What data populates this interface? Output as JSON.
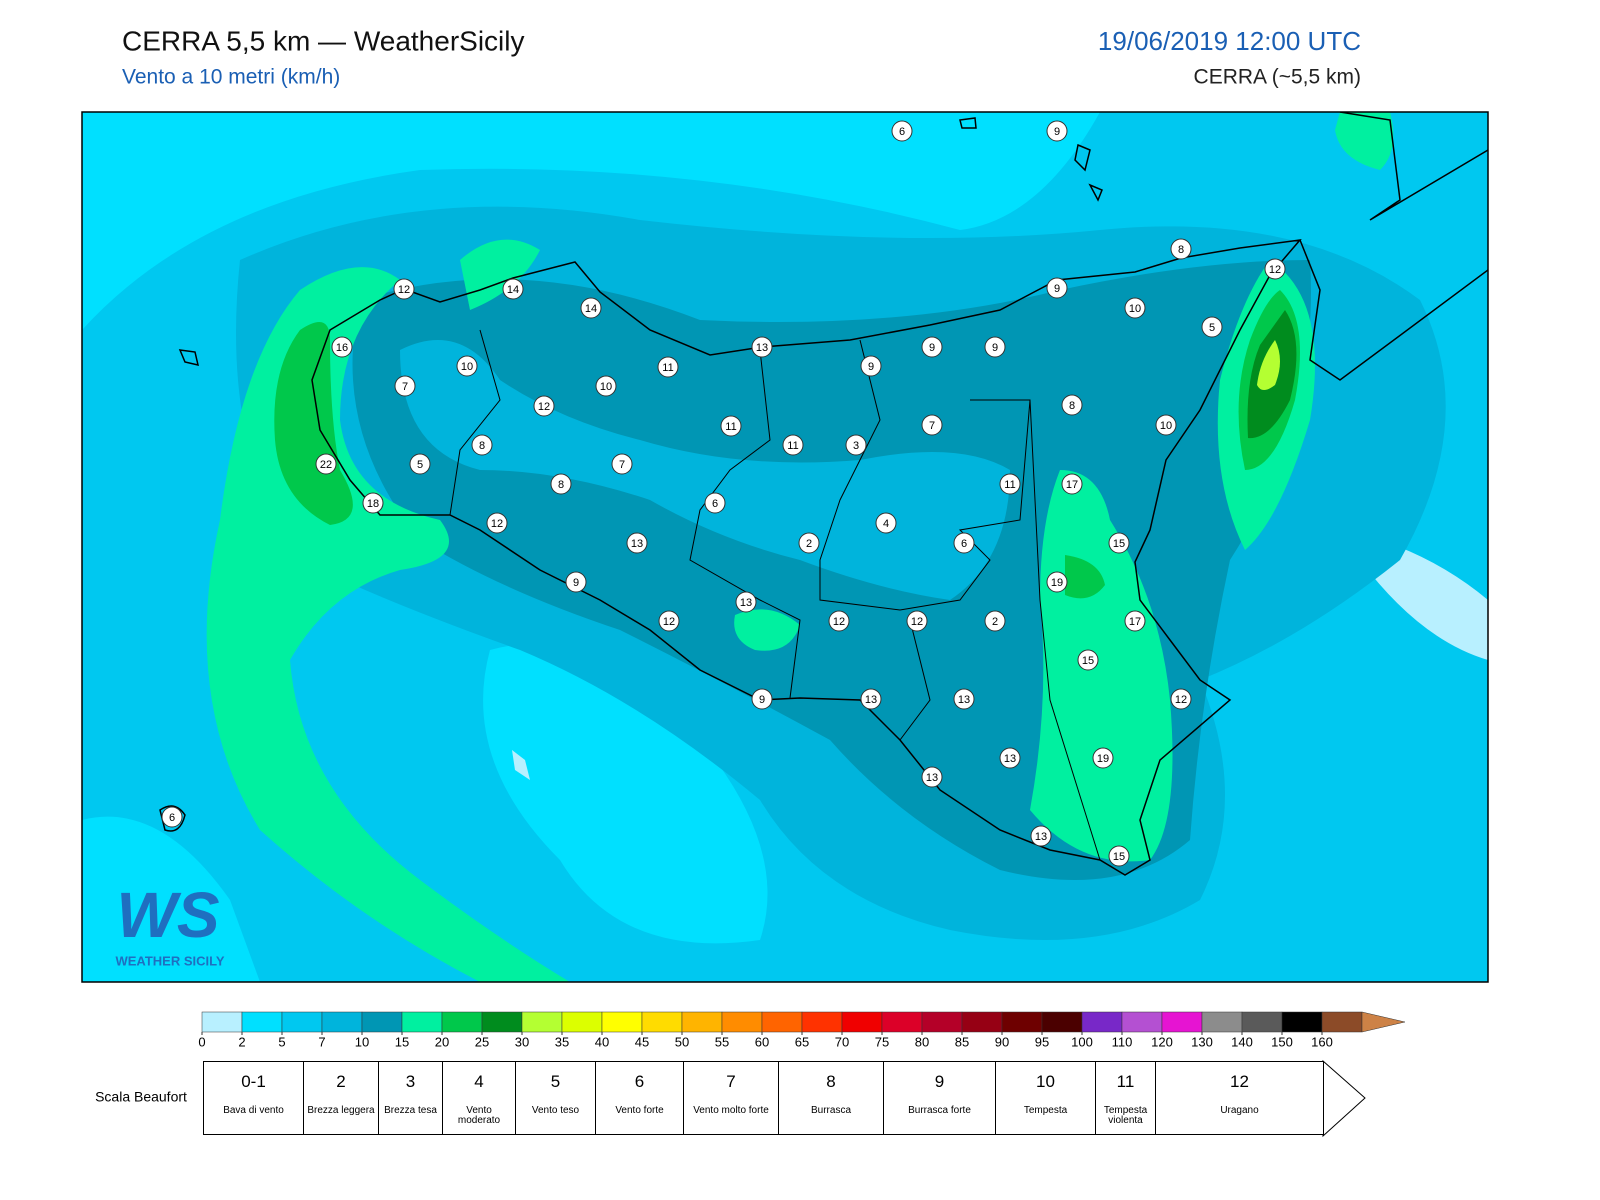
{
  "header": {
    "title": "CERRA 5,5 km — WeatherSicily",
    "subtitle": "Vento a 10 metri (km/h)",
    "date": "19/06/2019 12:00 UTC",
    "model": "CERRA (~5,5 km)"
  },
  "stations": {
    "values": [
      6,
      9,
      8,
      12,
      12,
      14,
      14,
      9,
      10,
      5,
      16,
      13,
      9,
      9,
      9,
      10,
      11,
      7,
      10,
      12,
      8,
      11,
      7,
      10,
      11,
      3,
      8,
      7,
      5,
      22,
      11,
      17,
      8,
      18,
      6,
      4,
      12,
      13,
      2,
      6,
      15,
      9,
      19,
      13,
      12,
      12,
      12,
      2,
      17,
      15,
      12,
      9,
      13,
      13,
      13,
      19,
      13,
      6,
      13,
      15
    ]
  },
  "logo": {
    "mark": "WS",
    "text": "WEATHER SICILY"
  },
  "colorbar": {
    "ticks": [
      0,
      2,
      5,
      7,
      10,
      15,
      20,
      25,
      30,
      35,
      40,
      45,
      50,
      55,
      60,
      65,
      70,
      75,
      80,
      85,
      90,
      95,
      100,
      110,
      120,
      130,
      140,
      150,
      160
    ],
    "colors": [
      "#b8f0ff",
      "#00e0ff",
      "#00c8f0",
      "#00b4dc",
      "#0096b4",
      "#00f0a0",
      "#00c84b",
      "#008c1e",
      "#b4ff32",
      "#dcff00",
      "#ffff00",
      "#ffdc00",
      "#ffb400",
      "#ff8c00",
      "#ff6400",
      "#ff3200",
      "#f00000",
      "#dc0028",
      "#b40028",
      "#960014",
      "#6e0000",
      "#4b0000",
      "#7828c8",
      "#b450d2",
      "#e614d2",
      "#8c8c8c",
      "#5a5a5a",
      "#000000"
    ],
    "extend_colors": [
      "#8c4b28",
      "#cd8246"
    ]
  },
  "beaufort": {
    "label": "Scala Beaufort",
    "levels": [
      {
        "force": "0-1",
        "name": "Bava di vento"
      },
      {
        "force": "2",
        "name": "Brezza leggera"
      },
      {
        "force": "3",
        "name": "Brezza tesa"
      },
      {
        "force": "4",
        "name": "Vento moderato"
      },
      {
        "force": "5",
        "name": "Vento teso"
      },
      {
        "force": "6",
        "name": "Vento forte"
      },
      {
        "force": "7",
        "name": "Vento molto forte"
      },
      {
        "force": "8",
        "name": "Burrasca"
      },
      {
        "force": "9",
        "name": "Burrasca forte"
      },
      {
        "force": "10",
        "name": "Tempesta"
      },
      {
        "force": "11",
        "name": "Tempesta violenta"
      },
      {
        "force": "12",
        "name": "Uragano"
      }
    ]
  }
}
